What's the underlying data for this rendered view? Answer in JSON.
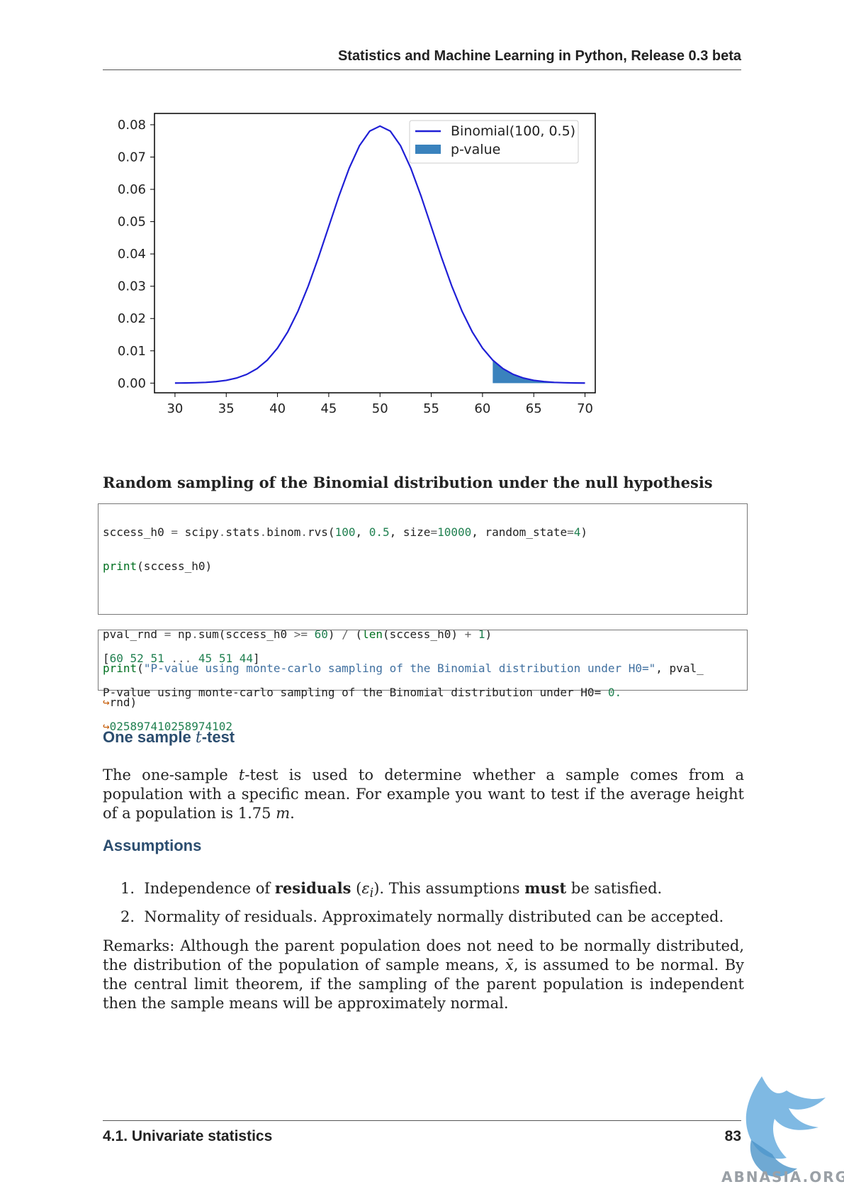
{
  "header": {
    "title": "Statistics and Machine Learning in Python, Release 0.3 beta"
  },
  "chart_data": {
    "type": "line",
    "x": [
      30,
      31,
      32,
      33,
      34,
      35,
      36,
      37,
      38,
      39,
      40,
      41,
      42,
      43,
      44,
      45,
      46,
      47,
      48,
      49,
      50,
      51,
      52,
      53,
      54,
      55,
      56,
      57,
      58,
      59,
      60,
      61,
      62,
      63,
      64,
      65,
      66,
      67,
      68,
      69,
      70
    ],
    "series": [
      {
        "name": "Binomial(100, 0.5)",
        "values": [
          2e-05,
          5e-05,
          0.00011,
          0.00023,
          0.00046,
          0.00086,
          0.00156,
          0.0027,
          0.00447,
          0.00711,
          0.01084,
          0.01587,
          0.02229,
          0.03007,
          0.03895,
          0.04847,
          0.05796,
          0.06659,
          0.07353,
          0.07803,
          0.07959,
          0.07803,
          0.07353,
          0.06659,
          0.05796,
          0.04847,
          0.03895,
          0.03007,
          0.02229,
          0.01587,
          0.01084,
          0.00711,
          0.00447,
          0.0027,
          0.00156,
          0.00086,
          0.00046,
          0.00023,
          0.00011,
          5e-05,
          2e-05
        ]
      }
    ],
    "shaded_region": {
      "name": "p-value",
      "x_from": 61,
      "x_to": 70
    },
    "xticks": [
      "30",
      "35",
      "40",
      "45",
      "50",
      "55",
      "60",
      "65",
      "70"
    ],
    "yticks": [
      "0.00",
      "0.01",
      "0.02",
      "0.03",
      "0.04",
      "0.05",
      "0.06",
      "0.07",
      "0.08"
    ],
    "xlim": [
      28,
      71
    ],
    "ylim": [
      -0.003,
      0.0835
    ],
    "legend": {
      "placement": "top-right",
      "entries": [
        "Binomial(100, 0.5)",
        "p-value"
      ]
    },
    "colors": {
      "line": "#1f1fd6",
      "fill": "#3a82bd"
    }
  },
  "caption": "Random sampling of the Binomial distribution under the null hypothesis",
  "code": {
    "line1": {
      "a": "sccess_h0 ",
      "b": "=",
      "c": " scipy",
      "d": ".",
      "e": "stats",
      "f": ".",
      "g": "binom",
      "h": ".",
      "i": "rvs(",
      "j": "100",
      "k": ", ",
      "l": "0.5",
      "m": ", size",
      "n": "=",
      "o": "10000",
      "p": ", random_state",
      "q": "=",
      "r": "4",
      "s": ")"
    },
    "line2": {
      "a": "print",
      "b": "(sccess_h0)"
    },
    "line4": {
      "a": "pval_rnd ",
      "b": "=",
      "c": " np",
      "d": ".",
      "e": "sum(sccess_h0 ",
      "f": ">=",
      "g": " ",
      "h": "60",
      "i": ") ",
      "j": "/",
      "k": " (",
      "l": "len",
      "m": "(sccess_h0) ",
      "n": "+",
      "o": " ",
      "p": "1",
      "q": ")"
    },
    "line5": {
      "a": "print",
      "b": "(",
      "c": "\"P-value using monte-carlo sampling of the Binomial distribution under H0=\"",
      "d": ", pval_"
    },
    "line6": {
      "arrow": "↪",
      "a": "rnd)"
    }
  },
  "output": {
    "line1": {
      "a": "[",
      "b": "60",
      "c": " ",
      "d": "52",
      "e": " ",
      "f": "51",
      "g": " ",
      "h": "...",
      "i": " ",
      "j": "45",
      "k": " ",
      "l": "51",
      "m": " ",
      "n": "44",
      "o": "]"
    },
    "line2": {
      "a": "P-value using monte-carlo sampling of the Binomial distribution under H0= ",
      "b": "0."
    },
    "line3": {
      "arrow": "↪",
      "a": "025897410258974102"
    }
  },
  "section1": {
    "title_pre": "One sample ",
    "title_t": "t",
    "title_post": "-test"
  },
  "para1": {
    "a": "The one-sample ",
    "t": "t",
    "b": "-test is used to determine whether a sample comes from a population with a specific mean. For example you want to test if the average height of a population is ",
    "num": "1.75",
    "sp": " ",
    "unit": "m",
    "c": "."
  },
  "section2": {
    "title": "Assumptions"
  },
  "list": [
    {
      "num": "1.",
      "a": "Independence of ",
      "bold": "residuals",
      "b": " (",
      "eps": "ε",
      "sub": "i",
      "c": "). This assumptions ",
      "bold2": "must",
      "d": " be satisfied."
    },
    {
      "num": "2.",
      "a": "Normality of residuals. Approximately normally distributed can be accepted."
    }
  ],
  "para2": {
    "a": "Remarks: Although the parent population does not need to be normally distributed, the distribution of the population of sample means, ",
    "xbar": "x̄",
    "b": ", is assumed to be normal. By the central limit theorem, if the sampling of the parent population is independent then the sample means will be approximately normal."
  },
  "footer": {
    "section": "4.1.  Univariate statistics",
    "page": "83"
  },
  "watermark": {
    "text": "ABNASIA.ORG"
  }
}
